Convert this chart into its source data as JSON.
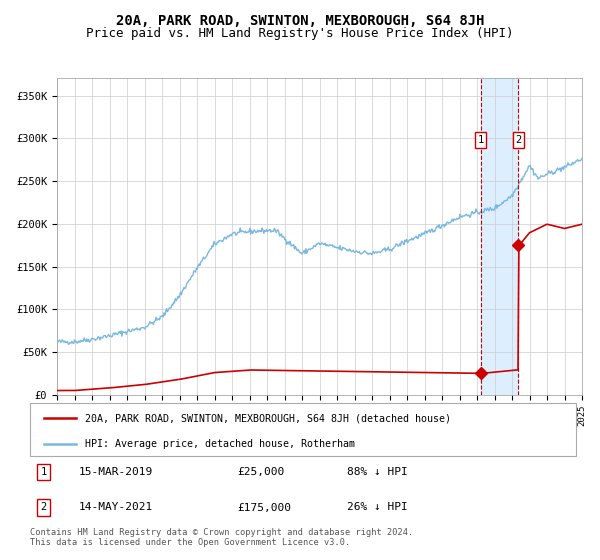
{
  "title": "20A, PARK ROAD, SWINTON, MEXBOROUGH, S64 8JH",
  "subtitle": "Price paid vs. HM Land Registry's House Price Index (HPI)",
  "ylim": [
    0,
    370000
  ],
  "yticks": [
    0,
    50000,
    100000,
    150000,
    200000,
    250000,
    300000,
    350000
  ],
  "ytick_labels": [
    "£0",
    "£50K",
    "£100K",
    "£150K",
    "£200K",
    "£250K",
    "£300K",
    "£350K"
  ],
  "hpi_color": "#7ab8e0",
  "price_color": "#cc0000",
  "shade_color": "#ddeeff",
  "transaction1_date": 2019.21,
  "transaction1_price": 25000,
  "transaction2_date": 2021.37,
  "transaction2_price": 175000,
  "legend_label1": "20A, PARK ROAD, SWINTON, MEXBOROUGH, S64 8JH (detached house)",
  "legend_label2": "HPI: Average price, detached house, Rotherham",
  "table_row1": [
    "1",
    "15-MAR-2019",
    "£25,000",
    "88% ↓ HPI"
  ],
  "table_row2": [
    "2",
    "14-MAY-2021",
    "£175,000",
    "26% ↓ HPI"
  ],
  "footnote": "Contains HM Land Registry data © Crown copyright and database right 2024.\nThis data is licensed under the Open Government Licence v3.0.",
  "title_fontsize": 10,
  "subtitle_fontsize": 9,
  "background_color": "#ffffff",
  "grid_color": "#cccccc",
  "xlim": [
    1995,
    2025
  ]
}
